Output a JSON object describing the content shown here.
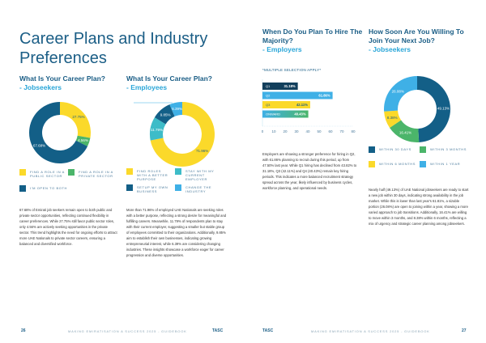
{
  "left_page": {
    "title": "Career Plans and Industry Preferences",
    "jobseekers": {
      "question": "What Is Your Career Plan?",
      "subtitle": "- Jobseekers",
      "legend": [
        "Find a role in a public sector",
        "Find a role in a private sector",
        "I'm open to both"
      ],
      "paragraph": "67.68% of Emirati job seekers remain open to both public and private sector opportunities, reflecting continued flexibility in career preferences. While 27.75% still favor public sector roles, only 4.56% are actively seeking opportunities in the private sector. This trend highlights the need for ongoing efforts to attract more UAE Nationals to private sector careers, ensuring a balanced and diversified workforce."
    },
    "employees": {
      "question": "What Is Your Career Plan?",
      "subtitle": "- Employees",
      "legend": [
        "Find roles with a better purpose",
        "Stay with my current employer",
        "Setup my own business",
        "Change the industry"
      ],
      "paragraph": "More than 71.96% of employed UAE Nationals are seeking roles with a better purpose, reflecting a strong desire for meaningful and fulfilling careers. Meanwhile, 11.79% of respondents plan to stay with their current employer, suggesting a smaller but stable group of employees committed to their organizations. Additionally, 9.85% aim to establish their own businesses, indicating growing entrepreneurial interest, while 6.39% are considering changing industries. These insights showcase a workforce eager for career progression and diverse opportunities."
    },
    "footer": {
      "page_number": "26",
      "text": "MAKING EMIRATISATION A SUCCESS 2025 - GUIDEBOOK",
      "logo": "TASC"
    }
  },
  "right_page": {
    "employers": {
      "question": "When Do You Plan To Hire The Majority?",
      "subtitle": "- Employers",
      "note": "*MULTIPLE SELECTION APPLY*",
      "paragraph": "Employers are showing a stronger preference for hiring in Q2, with 61.86% planning to recruit during this period, up from 47.50% last year. While Q1 hiring has declined from 43.82% to 31.18%, Q3 (42.11%) and Q4 (40.43%) remain key hiring periods. This indicates a more balanced recruitment strategy spread across the year, likely influenced by business cycles, workforce planning, and operational needs."
    },
    "jobseekers_join": {
      "question": "How Soon Are You Willing To Join Your Next Job?",
      "subtitle": "- Jobseekers",
      "legend": [
        "Within 30 days",
        "Within 3 months",
        "Within 6 months",
        "Within 1 year"
      ],
      "paragraph": "Nearly half (49.13%) of UAE National jobseekers are ready to start a new job within 30 days, indicating strong availability in the job market. While this is lower than last year's 61.81%, a sizable portion (26.08%) are open to joining within a year, showing a more varied approach to job transitions. Additionally, 16.41% are willing to move within 3 months, and 8.38% within 6 months, reflecting a mix of urgency and strategic career planning among jobseekers."
    },
    "footer": {
      "page_number": "27",
      "text": "MAKING EMIRATISATION A SUCCESS 2025 - GUIDEBOOK",
      "logo": "TASC"
    }
  },
  "colors": {
    "dark_blue": "#135f87",
    "navy": "#123f5c",
    "yellow": "#fbd92a",
    "green": "#4bb56a",
    "teal": "#3dbcc8",
    "light_blue": "#3fb0e6",
    "title_blue": "#1b5e86"
  },
  "chart_data": [
    {
      "type": "pie",
      "title": "What Is Your Career Plan? - Jobseekers",
      "categories": [
        "Find a role in a public sector",
        "Find a role in a private sector",
        "I'm open to both"
      ],
      "values": [
        27.75,
        4.56,
        67.68
      ],
      "labels": [
        "27.75%",
        "4.56%",
        "67.68%"
      ],
      "colors": [
        "#fbd92a",
        "#4bb56a",
        "#135f87"
      ],
      "donut": true
    },
    {
      "type": "pie",
      "title": "What Is Your Career Plan? - Employees",
      "categories": [
        "Find roles with a better purpose",
        "Stay with my current employer",
        "Setup my own business",
        "Change the industry"
      ],
      "values": [
        71.96,
        11.79,
        9.85,
        6.39
      ],
      "labels": [
        "71.96%",
        "11.79%",
        "9.85%",
        "6.39%"
      ],
      "colors": [
        "#fbd92a",
        "#3dbcc8",
        "#135f87",
        "#3fb0e6"
      ],
      "donut": true
    },
    {
      "type": "bar",
      "orientation": "horizontal",
      "title": "When Do You Plan To Hire The Majority? - Employers",
      "categories": [
        "Q1",
        "Q2",
        "Q3",
        "ONWARD"
      ],
      "values": [
        31.18,
        61.86,
        42.11,
        40.43
      ],
      "labels": [
        "31.18%",
        "61.86%",
        "42.11%",
        "40.43%"
      ],
      "colors": [
        "#123f5c",
        "#3fb0e6",
        "#fbd92a",
        "#4bb56a"
      ],
      "xlim": [
        0,
        80
      ],
      "xticks": [
        0,
        10,
        20,
        30,
        40,
        50,
        60,
        70,
        80
      ]
    },
    {
      "type": "pie",
      "title": "How Soon Are You Willing To Join Your Next Job? - Jobseekers",
      "categories": [
        "Within 30 days",
        "Within 3 months",
        "Within 6 months",
        "Within 1 year"
      ],
      "values": [
        49.13,
        16.41,
        8.38,
        26.08
      ],
      "labels": [
        "49.13%",
        "16.41%",
        "8.38%",
        "26.08%"
      ],
      "colors": [
        "#135f87",
        "#4bb56a",
        "#fbd92a",
        "#3fb0e6"
      ],
      "donut": true
    }
  ]
}
